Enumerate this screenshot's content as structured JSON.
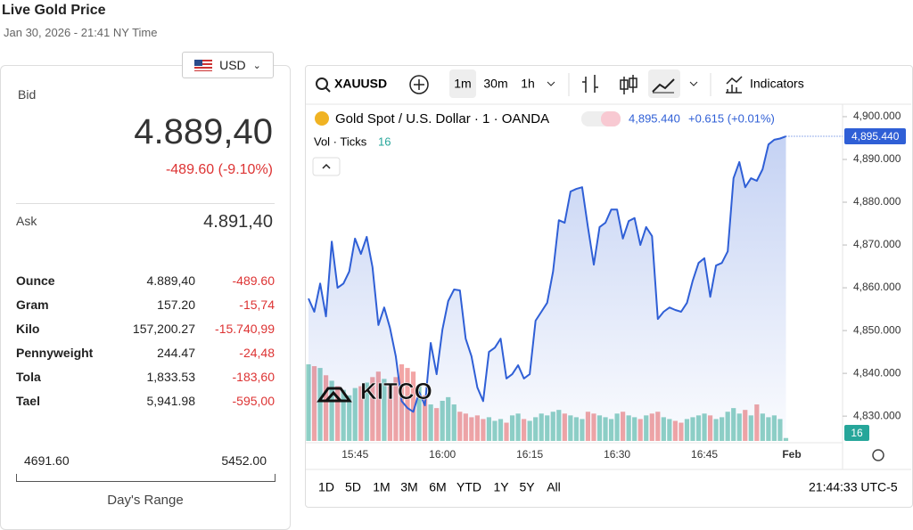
{
  "header": {
    "title": "Live Gold Price",
    "timestamp": "Jan 30, 2026 - 21:41 NY Time"
  },
  "currency": "USD",
  "bid": {
    "label": "Bid",
    "value": "4.889,40",
    "change": "-489.60 (-9.10%)"
  },
  "ask": {
    "label": "Ask",
    "value": "4.891,40"
  },
  "units": [
    [
      "Ounce",
      "4.889,40",
      "-489.60"
    ],
    [
      "Gram",
      "157.20",
      "-15,74"
    ],
    [
      "Kilo",
      "157,200.27",
      "-15.740,99"
    ],
    [
      "Pennyweight",
      "244.47",
      "-24,48"
    ],
    [
      "Tola",
      "1,833.53",
      "-183,60"
    ],
    [
      "Tael",
      "5,941.98",
      "-595,00"
    ]
  ],
  "range": {
    "low": "4691.60",
    "high": "5452.00",
    "label": "Day's Range"
  },
  "toolbar": {
    "symbol": "XAUUSD",
    "intervals": [
      "1m",
      "30m",
      "1h"
    ],
    "indicators": "Indicators"
  },
  "legend": {
    "name": "Gold Spot / U.S. Dollar · 1 · OANDA",
    "price": "4,895.440",
    "change": "+0.615 (+0.01%)",
    "vol": "Vol · Ticks",
    "vol_value": "16"
  },
  "watermark": "KITCO",
  "periods": [
    "1D",
    "5D",
    "1M",
    "3M",
    "6M",
    "YTD",
    "1Y",
    "5Y",
    "All"
  ],
  "clock": "21:44:33 UTC-5",
  "chart_data": {
    "type": "line",
    "categories": [
      null,
      null,
      null,
      null,
      null,
      null,
      null,
      null,
      "15:45",
      null,
      null,
      null,
      null,
      null,
      null,
      null,
      null,
      null,
      null,
      null,
      null,
      null,
      null,
      "16:00",
      null,
      null,
      null,
      null,
      null,
      null,
      null,
      null,
      null,
      null,
      null,
      null,
      null,
      null,
      "16:15",
      null,
      null,
      null,
      null,
      null,
      null,
      null,
      null,
      null,
      null,
      null,
      null,
      null,
      null,
      "16:30",
      null,
      null,
      null,
      null,
      null,
      null,
      null,
      null,
      null,
      null,
      null,
      null,
      null,
      null,
      "16:45",
      null,
      null,
      null,
      null,
      null,
      null,
      null,
      null,
      null,
      null,
      null,
      null,
      null,
      null,
      "Feb"
    ],
    "series": [
      {
        "name": "Gold Spot / U.S. Dollar",
        "color": "#2f5fd6",
        "values": [
          4857.5,
          4854.4,
          4861.0,
          4853.3,
          4870.8,
          4860.0,
          4861.0,
          4863.8,
          4871.5,
          4867.9,
          4871.9,
          4864.8,
          4851.3,
          4855.4,
          4850.6,
          4844.0,
          4833.5,
          4831.9,
          4831.0,
          4835.6,
          4832.5,
          4847.1,
          4839.8,
          4850.2,
          4856.9,
          4859.6,
          4859.4,
          4848.1,
          4844.0,
          4836.7,
          4833.5,
          4845.0,
          4846.0,
          4848.1,
          4838.8,
          4839.8,
          4841.9,
          4838.8,
          4839.8,
          4852.3,
          4854.4,
          4856.5,
          4863.8,
          4875.8,
          4875.2,
          4882.5,
          4883.1,
          4883.5,
          4874.2,
          4865.4,
          4874.2,
          4875.2,
          4878.3,
          4878.3,
          4871.5,
          4875.6,
          4876.3,
          4870.0,
          4874.2,
          4872.1,
          4852.7,
          4854.4,
          4855.4,
          4854.8,
          4854.4,
          4856.5,
          4861.7,
          4865.8,
          4866.9,
          4857.9,
          4865.2,
          4865.8,
          4868.5,
          4885.6,
          4889.4,
          4883.5,
          4885.6,
          4885.0,
          4887.7,
          4893.5,
          4894.6,
          4894.9,
          4895.4,
          null
        ]
      },
      {
        "name": "Vol · Ticks",
        "axis": "y2",
        "values": [
          420,
          410,
          400,
          360,
          330,
          300,
          280,
          250,
          290,
          300,
          320,
          350,
          380,
          340,
          300,
          350,
          420,
          400,
          380,
          300,
          250,
          200,
          180,
          220,
          240,
          200,
          160,
          150,
          130,
          140,
          120,
          130,
          110,
          120,
          100,
          140,
          150,
          120,
          110,
          130,
          150,
          140,
          160,
          170,
          150,
          140,
          130,
          120,
          160,
          150,
          140,
          130,
          120,
          150,
          160,
          140,
          130,
          120,
          140,
          150,
          160,
          130,
          120,
          110,
          100,
          120,
          130,
          140,
          150,
          140,
          120,
          130,
          160,
          180,
          150,
          170,
          140,
          200,
          150,
          130,
          140,
          120,
          16,
          null
        ]
      }
    ],
    "up_color": "#8fd1c5",
    "down_color": "#f2a5a5",
    "ylim": [
      4824.2,
      4902.7
    ],
    "yticks": [
      {
        "value": 4830,
        "label": "4,830.000"
      },
      {
        "value": 4840,
        "label": "4,840.000"
      },
      {
        "value": 4850,
        "label": "4,850.000"
      },
      {
        "value": 4860,
        "label": "4,860.000"
      },
      {
        "value": 4870,
        "label": "4,870.000"
      },
      {
        "value": 4880,
        "label": "4,880.000"
      },
      {
        "value": 4890,
        "label": "4,890.000"
      },
      {
        "value": 4900,
        "label": "4,900.000"
      }
    ]
  }
}
